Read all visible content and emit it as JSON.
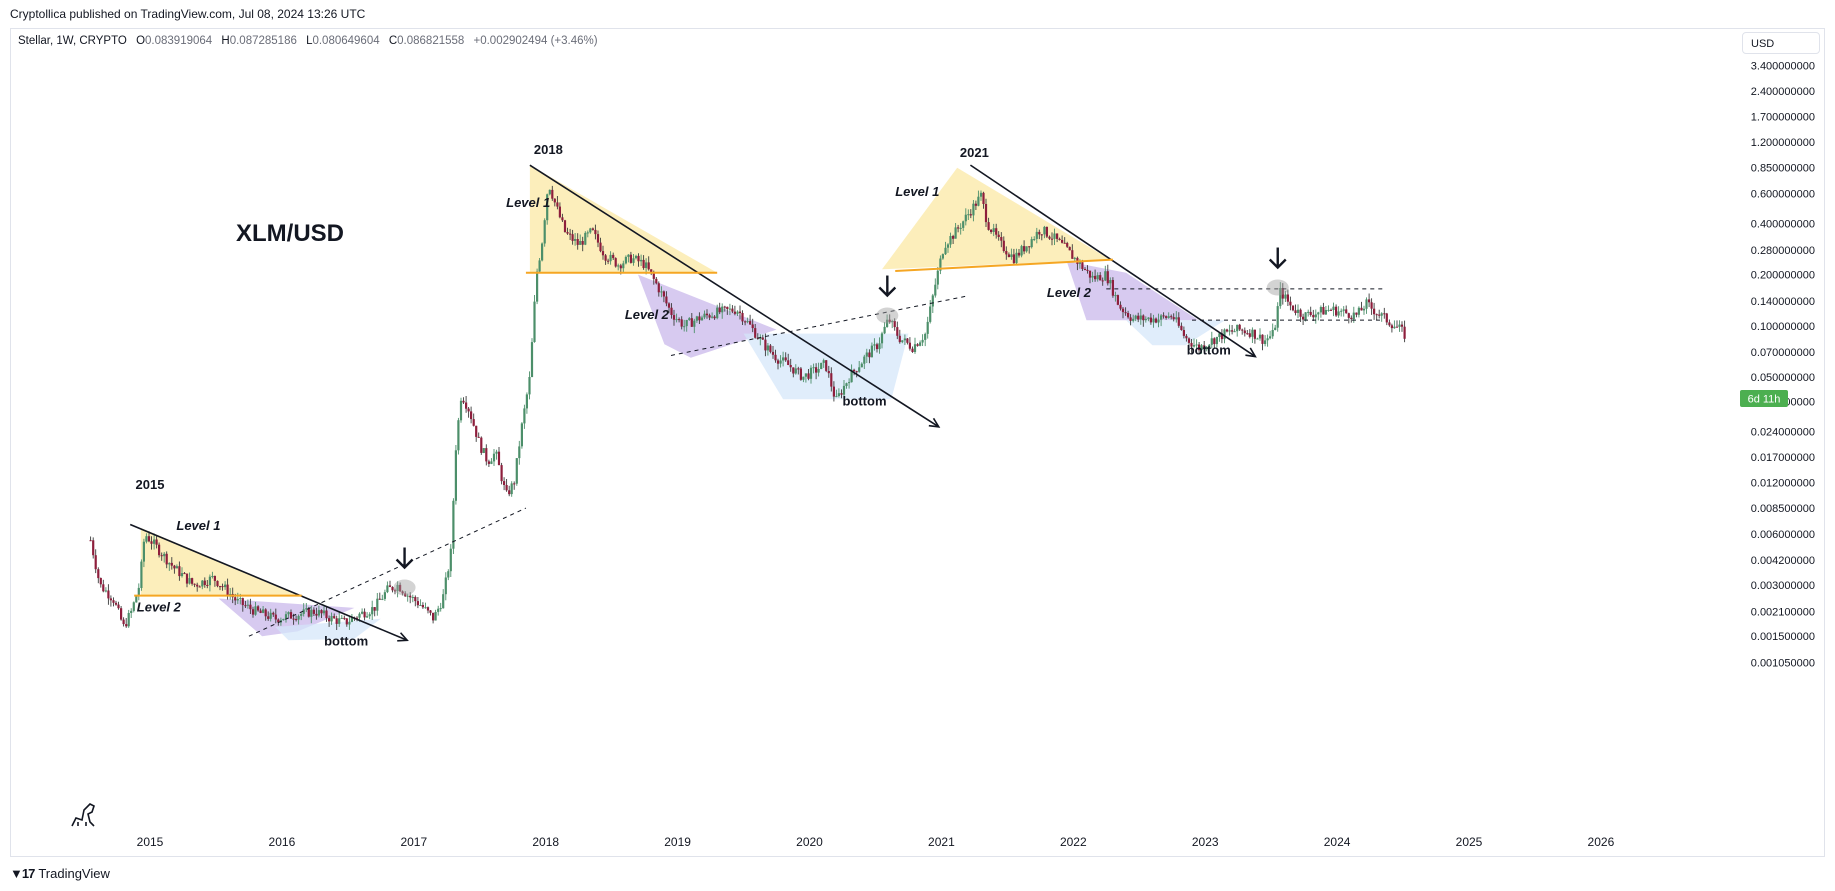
{
  "header": {
    "published": "Cryptollica published on TradingView.com, Jul 08, 2024 13:26 UTC"
  },
  "legend": {
    "symbol": "Stellar, 1W, CRYPTO",
    "o_label": "O",
    "o": "0.083919064",
    "h_label": "H",
    "h": "0.087285186",
    "l_label": "L",
    "l": "0.080649604",
    "c_label": "C",
    "c": "0.086821558",
    "change": "+0.002902494 (+3.46%)"
  },
  "currency_button": "USD",
  "countdown_badge": "6d 11h",
  "footer": {
    "brand": "TradingView"
  },
  "colors": {
    "up": "#4c8f6a",
    "down": "#8e1e3c",
    "wick": "#3b3b3b",
    "yellow_zone": "#fbe7a1",
    "purple_zone": "#c7b5ea",
    "blue_zone": "#d4e6f9",
    "orange_line": "#f5a623",
    "badge": "#4caf50"
  },
  "chart_data": {
    "type": "candlestick",
    "title": "XLM/USD",
    "y_scale": "log",
    "ylim": [
      0.0009,
      3.4
    ],
    "y_ticks": [
      "3.400000000",
      "2.400000000",
      "1.700000000",
      "1.200000000",
      "0.850000000",
      "0.600000000",
      "0.400000000",
      "0.280000000",
      "0.200000000",
      "0.140000000",
      "0.100000000",
      "0.070000000",
      "0.050000000",
      "0.036000000",
      "0.024000000",
      "0.017000000",
      "0.012000000",
      "0.008500000",
      "0.006000000",
      "0.004200000",
      "0.003000000",
      "0.002100000",
      "0.001500000",
      "0.001050000"
    ],
    "x_ticks": [
      "2015",
      "2016",
      "2017",
      "2018",
      "2019",
      "2020",
      "2021",
      "2022",
      "2023",
      "2024",
      "2025",
      "2026"
    ],
    "xlim": [
      2014.45,
      2026.65
    ],
    "grid": false,
    "last_close": 0.0868,
    "price_path": [
      [
        2014.55,
        0.0055
      ],
      [
        2014.62,
        0.003
      ],
      [
        2014.72,
        0.0025
      ],
      [
        2014.8,
        0.0017
      ],
      [
        2014.86,
        0.0021
      ],
      [
        2014.92,
        0.003
      ],
      [
        2014.96,
        0.006
      ],
      [
        2015.05,
        0.005
      ],
      [
        2015.18,
        0.0038
      ],
      [
        2015.33,
        0.003
      ],
      [
        2015.48,
        0.0033
      ],
      [
        2015.58,
        0.0028
      ],
      [
        2015.66,
        0.0024
      ],
      [
        2015.8,
        0.0021
      ],
      [
        2015.95,
        0.0019
      ],
      [
        2016.1,
        0.002
      ],
      [
        2016.25,
        0.0021
      ],
      [
        2016.38,
        0.0019
      ],
      [
        2016.48,
        0.0018
      ],
      [
        2016.58,
        0.002
      ],
      [
        2016.7,
        0.0022
      ],
      [
        2016.8,
        0.0028
      ],
      [
        2016.88,
        0.003
      ],
      [
        2016.96,
        0.0026
      ],
      [
        2017.05,
        0.0023
      ],
      [
        2017.15,
        0.0019
      ],
      [
        2017.22,
        0.0025
      ],
      [
        2017.28,
        0.0045
      ],
      [
        2017.32,
        0.02
      ],
      [
        2017.36,
        0.04
      ],
      [
        2017.42,
        0.032
      ],
      [
        2017.5,
        0.02
      ],
      [
        2017.56,
        0.016
      ],
      [
        2017.62,
        0.018
      ],
      [
        2017.7,
        0.01
      ],
      [
        2017.76,
        0.012
      ],
      [
        2017.82,
        0.026
      ],
      [
        2017.88,
        0.05
      ],
      [
        2017.93,
        0.2
      ],
      [
        2017.97,
        0.3
      ],
      [
        2018.02,
        0.7
      ],
      [
        2018.08,
        0.5
      ],
      [
        2018.15,
        0.35
      ],
      [
        2018.25,
        0.3
      ],
      [
        2018.35,
        0.36
      ],
      [
        2018.45,
        0.26
      ],
      [
        2018.55,
        0.23
      ],
      [
        2018.65,
        0.25
      ],
      [
        2018.75,
        0.23
      ],
      [
        2018.85,
        0.17
      ],
      [
        2018.95,
        0.12
      ],
      [
        2019.05,
        0.1
      ],
      [
        2019.15,
        0.11
      ],
      [
        2019.3,
        0.12
      ],
      [
        2019.45,
        0.125
      ],
      [
        2019.55,
        0.1
      ],
      [
        2019.65,
        0.078
      ],
      [
        2019.75,
        0.065
      ],
      [
        2019.85,
        0.058
      ],
      [
        2019.95,
        0.05
      ],
      [
        2020.05,
        0.055
      ],
      [
        2020.12,
        0.06
      ],
      [
        2020.2,
        0.036
      ],
      [
        2020.3,
        0.05
      ],
      [
        2020.42,
        0.065
      ],
      [
        2020.52,
        0.078
      ],
      [
        2020.6,
        0.11
      ],
      [
        2020.68,
        0.085
      ],
      [
        2020.78,
        0.075
      ],
      [
        2020.88,
        0.09
      ],
      [
        2020.95,
        0.17
      ],
      [
        2021.02,
        0.3
      ],
      [
        2021.1,
        0.35
      ],
      [
        2021.2,
        0.45
      ],
      [
        2021.3,
        0.58
      ],
      [
        2021.35,
        0.4
      ],
      [
        2021.45,
        0.3
      ],
      [
        2021.55,
        0.25
      ],
      [
        2021.65,
        0.3
      ],
      [
        2021.75,
        0.37
      ],
      [
        2021.85,
        0.33
      ],
      [
        2021.95,
        0.28
      ],
      [
        2022.05,
        0.23
      ],
      [
        2022.15,
        0.19
      ],
      [
        2022.25,
        0.2
      ],
      [
        2022.35,
        0.13
      ],
      [
        2022.45,
        0.11
      ],
      [
        2022.55,
        0.11
      ],
      [
        2022.65,
        0.11
      ],
      [
        2022.75,
        0.115
      ],
      [
        2022.85,
        0.085
      ],
      [
        2022.95,
        0.074
      ],
      [
        2023.05,
        0.082
      ],
      [
        2023.15,
        0.09
      ],
      [
        2023.25,
        0.095
      ],
      [
        2023.35,
        0.092
      ],
      [
        2023.45,
        0.082
      ],
      [
        2023.52,
        0.09
      ],
      [
        2023.57,
        0.16
      ],
      [
        2023.65,
        0.13
      ],
      [
        2023.75,
        0.115
      ],
      [
        2023.85,
        0.12
      ],
      [
        2023.95,
        0.125
      ],
      [
        2024.05,
        0.12
      ],
      [
        2024.15,
        0.115
      ],
      [
        2024.22,
        0.135
      ],
      [
        2024.3,
        0.12
      ],
      [
        2024.4,
        0.105
      ],
      [
        2024.48,
        0.095
      ],
      [
        2024.52,
        0.0868
      ]
    ]
  },
  "annotations": {
    "years": [
      {
        "text": "2015",
        "x": 2015.0,
        "y": 0.011
      },
      {
        "text": "2018",
        "x": 2018.02,
        "y": 1.02
      },
      {
        "text": "2021",
        "x": 2021.25,
        "y": 0.98
      }
    ],
    "levels": [
      {
        "text": "Level 1",
        "x": 2015.2,
        "y": 0.0063
      },
      {
        "text": "Level 2",
        "x": 2014.9,
        "y": 0.0021
      },
      {
        "text": "Level 1",
        "x": 2017.7,
        "y": 0.5
      },
      {
        "text": "Level 2",
        "x": 2018.6,
        "y": 0.11
      },
      {
        "text": "Level 1",
        "x": 2020.65,
        "y": 0.58
      },
      {
        "text": "Level 2",
        "x": 2021.8,
        "y": 0.148
      }
    ],
    "bottoms": [
      {
        "text": "bottom",
        "x": 2016.32,
        "y": 0.00132
      },
      {
        "text": "bottom",
        "x": 2020.25,
        "y": 0.034
      },
      {
        "text": "bottom",
        "x": 2022.86,
        "y": 0.068
      }
    ]
  }
}
